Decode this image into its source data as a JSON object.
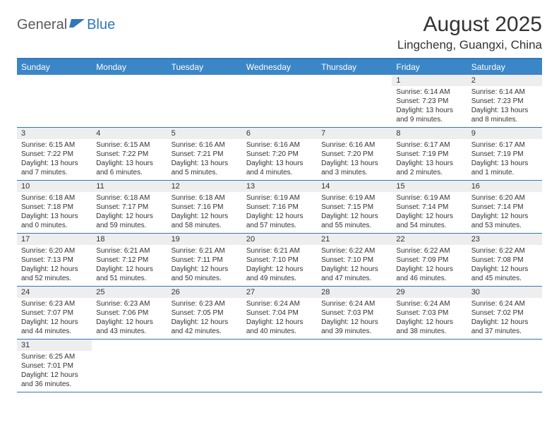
{
  "logo": {
    "text1": "General",
    "text2": "Blue"
  },
  "title": "August 2025",
  "location": "Lingcheng, Guangxi, China",
  "colors": {
    "header_bg": "#3b86c6",
    "header_border": "#2f78bd",
    "daynum_bg": "#eeeeee"
  },
  "day_headers": [
    "Sunday",
    "Monday",
    "Tuesday",
    "Wednesday",
    "Thursday",
    "Friday",
    "Saturday"
  ],
  "weeks": [
    [
      null,
      null,
      null,
      null,
      null,
      {
        "n": "1",
        "sr": "6:14 AM",
        "ss": "7:23 PM",
        "dl": "13 hours and 9 minutes."
      },
      {
        "n": "2",
        "sr": "6:14 AM",
        "ss": "7:23 PM",
        "dl": "13 hours and 8 minutes."
      }
    ],
    [
      {
        "n": "3",
        "sr": "6:15 AM",
        "ss": "7:22 PM",
        "dl": "13 hours and 7 minutes."
      },
      {
        "n": "4",
        "sr": "6:15 AM",
        "ss": "7:22 PM",
        "dl": "13 hours and 6 minutes."
      },
      {
        "n": "5",
        "sr": "6:16 AM",
        "ss": "7:21 PM",
        "dl": "13 hours and 5 minutes."
      },
      {
        "n": "6",
        "sr": "6:16 AM",
        "ss": "7:20 PM",
        "dl": "13 hours and 4 minutes."
      },
      {
        "n": "7",
        "sr": "6:16 AM",
        "ss": "7:20 PM",
        "dl": "13 hours and 3 minutes."
      },
      {
        "n": "8",
        "sr": "6:17 AM",
        "ss": "7:19 PM",
        "dl": "13 hours and 2 minutes."
      },
      {
        "n": "9",
        "sr": "6:17 AM",
        "ss": "7:19 PM",
        "dl": "13 hours and 1 minute."
      }
    ],
    [
      {
        "n": "10",
        "sr": "6:18 AM",
        "ss": "7:18 PM",
        "dl": "13 hours and 0 minutes."
      },
      {
        "n": "11",
        "sr": "6:18 AM",
        "ss": "7:17 PM",
        "dl": "12 hours and 59 minutes."
      },
      {
        "n": "12",
        "sr": "6:18 AM",
        "ss": "7:16 PM",
        "dl": "12 hours and 58 minutes."
      },
      {
        "n": "13",
        "sr": "6:19 AM",
        "ss": "7:16 PM",
        "dl": "12 hours and 57 minutes."
      },
      {
        "n": "14",
        "sr": "6:19 AM",
        "ss": "7:15 PM",
        "dl": "12 hours and 55 minutes."
      },
      {
        "n": "15",
        "sr": "6:19 AM",
        "ss": "7:14 PM",
        "dl": "12 hours and 54 minutes."
      },
      {
        "n": "16",
        "sr": "6:20 AM",
        "ss": "7:14 PM",
        "dl": "12 hours and 53 minutes."
      }
    ],
    [
      {
        "n": "17",
        "sr": "6:20 AM",
        "ss": "7:13 PM",
        "dl": "12 hours and 52 minutes."
      },
      {
        "n": "18",
        "sr": "6:21 AM",
        "ss": "7:12 PM",
        "dl": "12 hours and 51 minutes."
      },
      {
        "n": "19",
        "sr": "6:21 AM",
        "ss": "7:11 PM",
        "dl": "12 hours and 50 minutes."
      },
      {
        "n": "20",
        "sr": "6:21 AM",
        "ss": "7:10 PM",
        "dl": "12 hours and 49 minutes."
      },
      {
        "n": "21",
        "sr": "6:22 AM",
        "ss": "7:10 PM",
        "dl": "12 hours and 47 minutes."
      },
      {
        "n": "22",
        "sr": "6:22 AM",
        "ss": "7:09 PM",
        "dl": "12 hours and 46 minutes."
      },
      {
        "n": "23",
        "sr": "6:22 AM",
        "ss": "7:08 PM",
        "dl": "12 hours and 45 minutes."
      }
    ],
    [
      {
        "n": "24",
        "sr": "6:23 AM",
        "ss": "7:07 PM",
        "dl": "12 hours and 44 minutes."
      },
      {
        "n": "25",
        "sr": "6:23 AM",
        "ss": "7:06 PM",
        "dl": "12 hours and 43 minutes."
      },
      {
        "n": "26",
        "sr": "6:23 AM",
        "ss": "7:05 PM",
        "dl": "12 hours and 42 minutes."
      },
      {
        "n": "27",
        "sr": "6:24 AM",
        "ss": "7:04 PM",
        "dl": "12 hours and 40 minutes."
      },
      {
        "n": "28",
        "sr": "6:24 AM",
        "ss": "7:03 PM",
        "dl": "12 hours and 39 minutes."
      },
      {
        "n": "29",
        "sr": "6:24 AM",
        "ss": "7:03 PM",
        "dl": "12 hours and 38 minutes."
      },
      {
        "n": "30",
        "sr": "6:24 AM",
        "ss": "7:02 PM",
        "dl": "12 hours and 37 minutes."
      }
    ],
    [
      {
        "n": "31",
        "sr": "6:25 AM",
        "ss": "7:01 PM",
        "dl": "12 hours and 36 minutes."
      },
      null,
      null,
      null,
      null,
      null,
      null
    ]
  ],
  "labels": {
    "sunrise": "Sunrise: ",
    "sunset": "Sunset: ",
    "daylight": "Daylight: "
  }
}
